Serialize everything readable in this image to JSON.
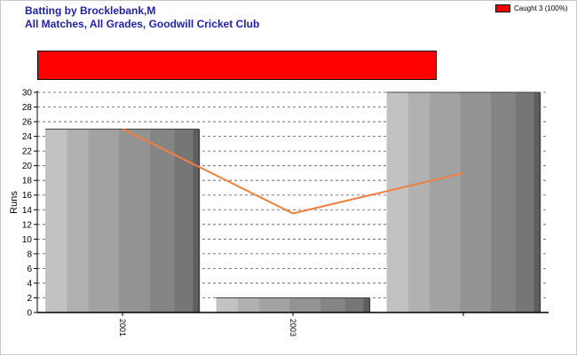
{
  "header": {
    "title_line1": "Batting by Brocklebank,M",
    "title_line2": "All Matches, All Grades, Goodwill Cricket Club"
  },
  "legend": {
    "label": "Caught 3 (100%)",
    "color": "#ff0000"
  },
  "chart_data": {
    "type": "bar",
    "categories": [
      "2001",
      "2003",
      ""
    ],
    "series": [
      {
        "kind": "bar",
        "values": [
          25,
          2,
          30
        ]
      },
      {
        "kind": "line",
        "values": [
          25,
          13.5,
          19
        ],
        "color": "#f08040"
      }
    ],
    "xlabel": "",
    "ylabel": "Runs",
    "ylim": [
      0,
      30
    ],
    "yticks": [
      0,
      2,
      4,
      6,
      8,
      10,
      12,
      14,
      16,
      18,
      20,
      22,
      24,
      26,
      28,
      30
    ],
    "grid": true,
    "legend_position": "top-right"
  }
}
